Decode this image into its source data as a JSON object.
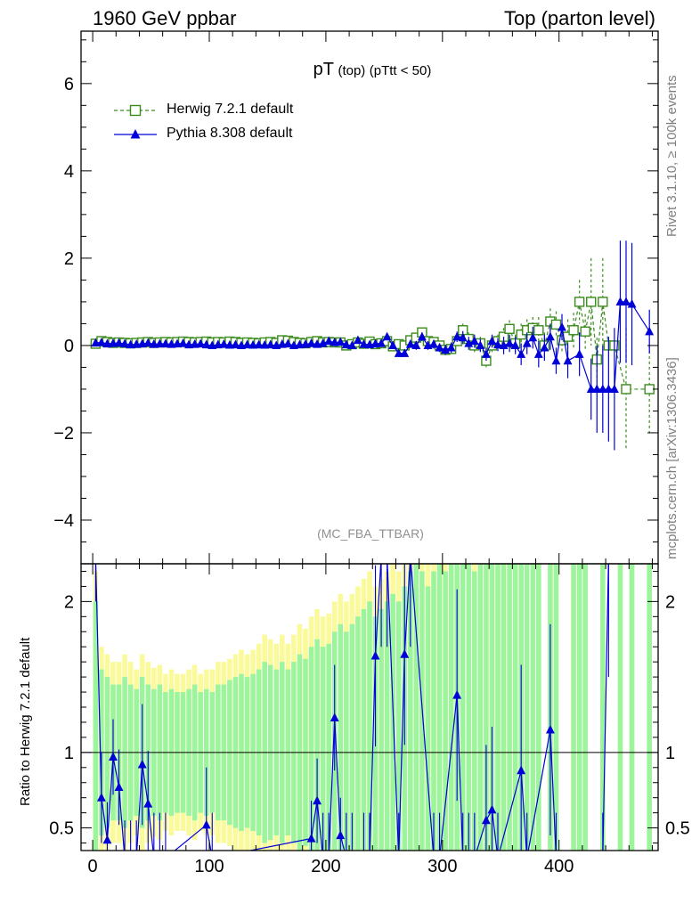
{
  "header": {
    "left": "1960 GeV ppbar",
    "right": "Top (parton level)"
  },
  "side": {
    "rivet": "Rivet 3.1.10, ≥ 100k events",
    "mcplots": "mcplots.cern.ch [arXiv:1306.3436]"
  },
  "title": {
    "main": "pT",
    "paren": "(top)",
    "cut": "(pTtt < 50)"
  },
  "analysis": "(MC_FBA_TTBAR)",
  "ratio_ylabel": "Ratio to Herwig 7.2.1 default",
  "colors": {
    "herwig": "#3a8c1c",
    "pythia": "#0000d8",
    "band_inner": "#9cf59c",
    "band_outer": "#fafa9a"
  },
  "chart_data": [
    {
      "type": "scatter",
      "panel": "main",
      "xlim": [
        -10,
        485
      ],
      "ylim": [
        -5,
        7.2
      ],
      "yticks": [
        -4,
        -2,
        0,
        2,
        4,
        6
      ],
      "ytick_labels": [
        "−4",
        "−2",
        "0",
        "2",
        "4",
        "6"
      ],
      "series": [
        {
          "name": "Herwig 7.2.1 default",
          "marker": "open-square",
          "line": "dashed",
          "x": [
            2.5,
            7.5,
            12.5,
            17.5,
            22.5,
            27.5,
            32.5,
            37.5,
            42.5,
            47.5,
            52.5,
            57.5,
            62.5,
            67.5,
            72.5,
            77.5,
            82.5,
            87.5,
            92.5,
            97.5,
            102.5,
            107.5,
            112.5,
            117.5,
            122.5,
            127.5,
            132.5,
            137.5,
            142.5,
            147.5,
            152.5,
            157.5,
            162.5,
            167.5,
            172.5,
            177.5,
            182.5,
            187.5,
            192.5,
            197.5,
            202.5,
            207.5,
            212.5,
            217.5,
            222.5,
            227.5,
            232.5,
            237.5,
            242.5,
            247.5,
            252.5,
            257.5,
            262.5,
            267.5,
            272.5,
            277.5,
            282.5,
            287.5,
            292.5,
            297.5,
            302.5,
            307.5,
            312.5,
            317.5,
            322.5,
            327.5,
            332.5,
            337.5,
            342.5,
            347.5,
            352.5,
            357.5,
            362.5,
            367.5,
            372.5,
            377.5,
            382.5,
            387.5,
            392.5,
            397.5,
            402.5,
            407.5,
            412.5,
            417.5,
            422.5,
            427.5,
            432.5,
            437.5,
            442.5,
            447.5,
            457.5,
            477.5
          ],
          "y": [
            0.04,
            0.1,
            0.08,
            0.06,
            0.07,
            0.06,
            0.05,
            0.06,
            0.07,
            0.08,
            0.06,
            0.07,
            0.08,
            0.07,
            0.08,
            0.09,
            0.08,
            0.07,
            0.08,
            0.09,
            0.07,
            0.08,
            0.07,
            0.09,
            0.08,
            0.06,
            0.07,
            0.06,
            0.05,
            0.07,
            0.08,
            0.06,
            0.12,
            0.11,
            0.08,
            0.06,
            0.05,
            0.08,
            0.1,
            0.07,
            0.08,
            0.07,
            0.07,
            0.0,
            0.03,
            0.07,
            0.04,
            0.09,
            0.03,
            0.05,
            0.1,
            -0.02,
            0.03,
            0.0,
            0.12,
            0.18,
            0.3,
            0.1,
            0.08,
            0.0,
            -0.1,
            -0.08,
            0.1,
            0.35,
            0.15,
            0.0,
            0.05,
            -0.35,
            0.0,
            0.1,
            0.2,
            0.38,
            0.05,
            0.25,
            0.35,
            0.4,
            0.35,
            0.0,
            0.55,
            0.48,
            0.12,
            0.2,
            0.35,
            1.0,
            0.32,
            1.0,
            -0.32,
            1.0,
            0.0,
            0.0,
            -1.0,
            -1.0
          ],
          "err": [
            0.03,
            0.03,
            0.03,
            0.03,
            0.03,
            0.03,
            0.03,
            0.03,
            0.03,
            0.03,
            0.03,
            0.03,
            0.03,
            0.03,
            0.03,
            0.03,
            0.03,
            0.03,
            0.03,
            0.03,
            0.03,
            0.03,
            0.03,
            0.03,
            0.03,
            0.03,
            0.03,
            0.03,
            0.03,
            0.03,
            0.03,
            0.03,
            0.04,
            0.04,
            0.04,
            0.04,
            0.04,
            0.04,
            0.05,
            0.05,
            0.05,
            0.05,
            0.05,
            0.05,
            0.06,
            0.06,
            0.06,
            0.06,
            0.07,
            0.07,
            0.07,
            0.08,
            0.08,
            0.08,
            0.08,
            0.1,
            0.1,
            0.1,
            0.1,
            0.1,
            0.12,
            0.12,
            0.12,
            0.15,
            0.15,
            0.15,
            0.15,
            0.15,
            0.15,
            0.15,
            0.2,
            0.2,
            0.2,
            0.25,
            0.25,
            0.25,
            0.3,
            0.3,
            0.3,
            0.3,
            0.3,
            0.4,
            0.4,
            0.5,
            0.4,
            1.0,
            0.5,
            1.0,
            0.0,
            0.0,
            1.4,
            1.0
          ]
        },
        {
          "name": "Pythia 8.308 default",
          "marker": "filled-triangle",
          "line": "solid",
          "x": [
            2.5,
            7.5,
            12.5,
            17.5,
            22.5,
            27.5,
            32.5,
            37.5,
            42.5,
            47.5,
            52.5,
            57.5,
            62.5,
            67.5,
            72.5,
            77.5,
            82.5,
            87.5,
            92.5,
            97.5,
            102.5,
            107.5,
            112.5,
            117.5,
            122.5,
            127.5,
            132.5,
            137.5,
            142.5,
            147.5,
            152.5,
            157.5,
            162.5,
            167.5,
            172.5,
            177.5,
            182.5,
            187.5,
            192.5,
            197.5,
            202.5,
            207.5,
            212.5,
            217.5,
            222.5,
            227.5,
            232.5,
            237.5,
            242.5,
            247.5,
            252.5,
            257.5,
            262.5,
            267.5,
            272.5,
            277.5,
            282.5,
            287.5,
            292.5,
            297.5,
            302.5,
            307.5,
            312.5,
            317.5,
            322.5,
            327.5,
            332.5,
            337.5,
            342.5,
            347.5,
            352.5,
            357.5,
            362.5,
            367.5,
            372.5,
            377.5,
            382.5,
            387.5,
            392.5,
            397.5,
            402.5,
            407.5,
            417.5,
            427.5,
            432.5,
            437.5,
            442.5,
            447.5,
            452.5,
            457.5,
            462.5,
            477.5
          ],
          "y": [
            0.06,
            0.07,
            0.04,
            0.05,
            0.06,
            0.04,
            0.02,
            0.03,
            0.04,
            0.06,
            0.03,
            0.04,
            0.04,
            0.03,
            0.04,
            0.05,
            0.02,
            0.03,
            0.04,
            0.02,
            0.0,
            0.02,
            0.03,
            0.01,
            0.02,
            0.0,
            0.02,
            0.01,
            0.02,
            0.01,
            0.02,
            0.0,
            0.03,
            0.04,
            0.0,
            0.02,
            0.03,
            0.05,
            0.03,
            0.05,
            0.1,
            0.07,
            0.08,
            0.02,
            0.0,
            0.12,
            0.03,
            0.02,
            0.04,
            0.05,
            0.2,
            0.0,
            -0.18,
            -0.18,
            0.03,
            0.0,
            0.2,
            0.0,
            0.03,
            -0.05,
            -0.1,
            -0.05,
            0.2,
            0.18,
            0.05,
            0.1,
            0.0,
            -0.2,
            0.1,
            0.02,
            0.0,
            0.05,
            0.0,
            -0.2,
            0.05,
            0.18,
            -0.2,
            -0.05,
            0.2,
            -0.35,
            0.42,
            -0.35,
            -0.2,
            -1.0,
            -1.0,
            -1.0,
            -1.0,
            -1.0,
            1.0,
            1.0,
            0.95,
            0.32
          ],
          "err": [
            0.03,
            0.03,
            0.03,
            0.03,
            0.03,
            0.03,
            0.03,
            0.03,
            0.03,
            0.03,
            0.03,
            0.03,
            0.03,
            0.03,
            0.03,
            0.03,
            0.03,
            0.03,
            0.03,
            0.03,
            0.03,
            0.03,
            0.03,
            0.03,
            0.03,
            0.03,
            0.03,
            0.03,
            0.03,
            0.03,
            0.03,
            0.03,
            0.04,
            0.04,
            0.04,
            0.04,
            0.04,
            0.04,
            0.05,
            0.05,
            0.05,
            0.05,
            0.05,
            0.05,
            0.06,
            0.06,
            0.06,
            0.06,
            0.07,
            0.07,
            0.07,
            0.08,
            0.08,
            0.08,
            0.08,
            0.1,
            0.1,
            0.1,
            0.1,
            0.1,
            0.12,
            0.12,
            0.12,
            0.15,
            0.15,
            0.15,
            0.15,
            0.15,
            0.15,
            0.15,
            0.2,
            0.2,
            0.2,
            0.25,
            0.25,
            0.25,
            0.3,
            0.3,
            0.3,
            0.3,
            0.3,
            0.4,
            0.5,
            0.7,
            1.0,
            1.0,
            1.2,
            1.4,
            1.4,
            1.4,
            1.4,
            0.5
          ]
        }
      ]
    },
    {
      "type": "scatter",
      "panel": "ratio",
      "ylabel": "Ratio to Herwig 7.2.1 default",
      "xlim": [
        -10,
        485
      ],
      "ylim": [
        0.35,
        2.25
      ],
      "xticks": [
        0,
        100,
        200,
        300,
        400
      ],
      "yticks": [
        0.5,
        1,
        2
      ],
      "ytick_labels": [
        "0.5",
        "1",
        "2"
      ],
      "bands": {
        "x": [
          2.5,
          7.5,
          12.5,
          17.5,
          22.5,
          27.5,
          32.5,
          37.5,
          42.5,
          47.5,
          52.5,
          57.5,
          62.5,
          67.5,
          72.5,
          77.5,
          82.5,
          87.5,
          92.5,
          97.5,
          102.5,
          107.5,
          112.5,
          117.5,
          122.5,
          127.5,
          132.5,
          137.5,
          142.5,
          147.5,
          152.5,
          157.5,
          162.5,
          167.5,
          172.5,
          177.5,
          182.5,
          187.5,
          192.5,
          197.5,
          202.5,
          207.5,
          212.5,
          217.5,
          222.5,
          227.5,
          232.5,
          237.5,
          242.5,
          247.5,
          252.5,
          257.5,
          262.5,
          267.5,
          272.5,
          277.5,
          282.5,
          287.5,
          292.5,
          297.5,
          302.5,
          307.5,
          312.5,
          317.5,
          322.5,
          327.5,
          332.5,
          337.5,
          342.5,
          347.5,
          352.5,
          357.5,
          362.5,
          367.5,
          372.5,
          377.5,
          382.5,
          387.5,
          392.5,
          397.5,
          402.5,
          407.5,
          412.5,
          417.5,
          422.5,
          427.5,
          432.5,
          437.5,
          442.5,
          447.5,
          452.5,
          457.5,
          462.5,
          467.5,
          472.5,
          477.5
        ],
        "inner": [
          1.0,
          0.55,
          0.5,
          0.45,
          0.45,
          0.5,
          0.45,
          0.42,
          0.5,
          0.45,
          0.42,
          0.45,
          0.4,
          0.42,
          0.4,
          0.4,
          0.42,
          0.45,
          0.4,
          0.42,
          0.4,
          0.45,
          0.45,
          0.48,
          0.5,
          0.52,
          0.5,
          0.52,
          0.55,
          0.6,
          0.58,
          0.55,
          0.6,
          0.55,
          0.6,
          0.65,
          0.62,
          0.7,
          0.75,
          0.7,
          0.72,
          0.8,
          0.85,
          0.8,
          0.85,
          0.9,
          0.95,
          1.0,
          0.9,
          0.95,
          1.0,
          1.05,
          1.0,
          1.1,
          1.2,
          1.3,
          1.2,
          1.1,
          1.2,
          1.3,
          1.2,
          1.3,
          1.3,
          1.4,
          1.3,
          1.2,
          1.5,
          1.4,
          1.5,
          1.4,
          1.6,
          1.5,
          1.4,
          1.5,
          1.3,
          1.6,
          1.8,
          0.0,
          1.7,
          1.8,
          0.0,
          0.0,
          1.7,
          1.8,
          1.9,
          0.0,
          0.0,
          1.9,
          0.0,
          0.0,
          2.0,
          0.0,
          2.0,
          0.0,
          0.0,
          2.0
        ],
        "outer": [
          1.2,
          0.7,
          0.65,
          0.6,
          0.6,
          0.65,
          0.6,
          0.55,
          0.65,
          0.6,
          0.56,
          0.58,
          0.52,
          0.55,
          0.52,
          0.52,
          0.55,
          0.58,
          0.52,
          0.55,
          0.55,
          0.6,
          0.6,
          0.62,
          0.65,
          0.68,
          0.65,
          0.68,
          0.72,
          0.78,
          0.75,
          0.72,
          0.78,
          0.72,
          0.78,
          0.85,
          0.82,
          0.9,
          0.95,
          0.9,
          0.92,
          1.0,
          1.05,
          1.0,
          1.05,
          1.1,
          1.15,
          1.2,
          1.1,
          1.15,
          1.2,
          1.25,
          1.2,
          1.3,
          1.4,
          1.5,
          1.4,
          1.3,
          1.4,
          1.5,
          1.4,
          1.5,
          1.5,
          1.6,
          1.5,
          1.4,
          1.7,
          1.6,
          1.7,
          1.6,
          1.8,
          1.7,
          1.6,
          1.7,
          1.5,
          1.8,
          2.0,
          0.0,
          1.9,
          2.0,
          0.0,
          0.0,
          1.9,
          2.0,
          2.1,
          0.0,
          0.0,
          2.1,
          0.0,
          0.0,
          2.2,
          0.0,
          2.2,
          0.0,
          0.0,
          2.2
        ]
      },
      "series": [
        {
          "name": "Pythia 8.308 default",
          "marker": "filled-triangle",
          "x": [
            2.5,
            7.5,
            12.5,
            17.5,
            22.5,
            27.5,
            32.5,
            37.5,
            42.5,
            47.5,
            52.5,
            57.5,
            62.5,
            97.5,
            102.5,
            187.5,
            192.5,
            197.5,
            202.5,
            207.5,
            212.5,
            217.5,
            222.5,
            232.5,
            237.5,
            242.5,
            247.5,
            252.5,
            262.5,
            267.5,
            272.5,
            292.5,
            297.5,
            312.5,
            317.5,
            322.5,
            327.5,
            337.5,
            342.5,
            347.5,
            367.5,
            372.5,
            392.5,
            397.5,
            437.5,
            442.5
          ],
          "y": [
            2.3,
            0.7,
            0.42,
            0.97,
            0.77,
            0.3,
            0.3,
            0.3,
            0.92,
            0.66,
            0.3,
            0.3,
            0.3,
            0.52,
            0.3,
            0.43,
            0.68,
            0.3,
            0.3,
            1.23,
            0.45,
            0.3,
            0.3,
            0.3,
            0.3,
            1.64,
            2.3,
            2.3,
            0.3,
            1.65,
            2.3,
            0.3,
            0.3,
            1.38,
            0.3,
            0.3,
            0.3,
            0.55,
            0.62,
            0.3,
            0.88,
            0.3,
            1.15,
            0.3,
            0.3,
            2.3
          ],
          "err": [
            0.3,
            0.3,
            0.25,
            0.25,
            0.25,
            0.25,
            0.25,
            0.25,
            0.4,
            0.35,
            0.3,
            0.3,
            0.3,
            0.38,
            0.3,
            0.25,
            0.28,
            0.3,
            0.3,
            0.35,
            0.25,
            0.3,
            0.3,
            0.3,
            0.3,
            0.6,
            0.6,
            0.6,
            0.3,
            0.6,
            0.6,
            0.3,
            0.3,
            0.7,
            0.3,
            0.3,
            0.3,
            0.5,
            0.55,
            0.3,
            0.7,
            0.3,
            0.7,
            0.3,
            0.3,
            0.8
          ]
        }
      ]
    }
  ]
}
